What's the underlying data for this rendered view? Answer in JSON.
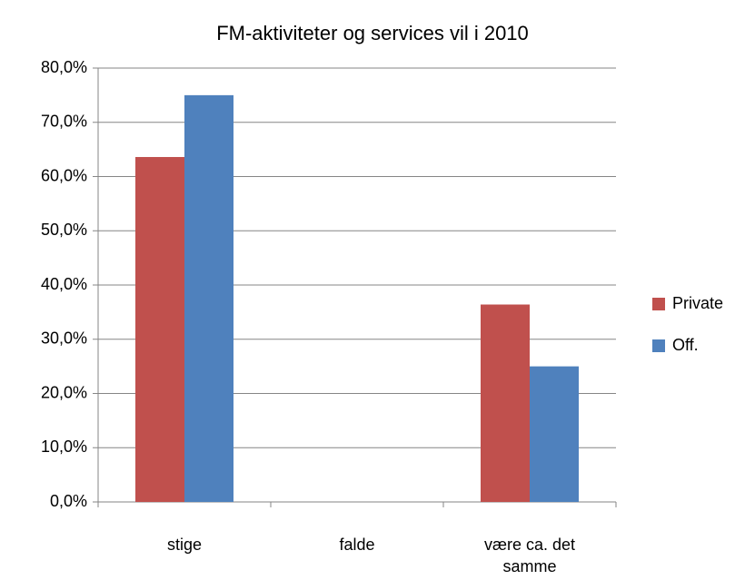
{
  "chart_data": {
    "type": "bar",
    "title": "FM-aktiviteter og services vil i 2010",
    "categories": [
      "stige",
      "falde",
      "være ca. det samme"
    ],
    "series": [
      {
        "name": "Private",
        "color": "#c0504d",
        "values": [
          63.6,
          0,
          36.4
        ]
      },
      {
        "name": "Off.",
        "color": "#4f81bd",
        "values": [
          75.0,
          0,
          25.0
        ]
      }
    ],
    "ylim": [
      0,
      80
    ],
    "yticks": [
      {
        "value": 0,
        "label": "0,0%"
      },
      {
        "value": 10,
        "label": "10,0%"
      },
      {
        "value": 20,
        "label": "20,0%"
      },
      {
        "value": 30,
        "label": "30,0%"
      },
      {
        "value": 40,
        "label": "40,0%"
      },
      {
        "value": 50,
        "label": "50,0%"
      },
      {
        "value": 60,
        "label": "60,0%"
      },
      {
        "value": 70,
        "label": "70,0%"
      },
      {
        "value": 80,
        "label": "80,0%"
      }
    ],
    "grid": true,
    "legend": "right"
  }
}
